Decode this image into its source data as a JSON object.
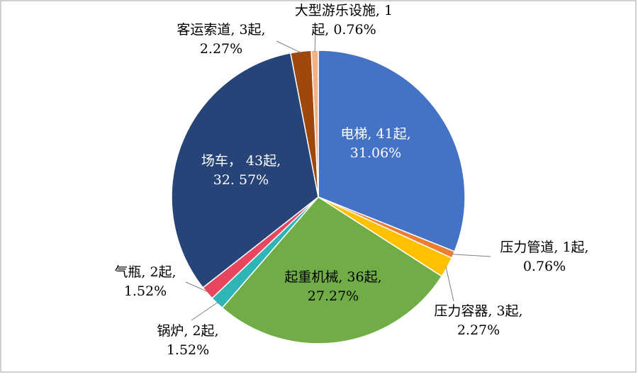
{
  "chart_data": {
    "type": "pie",
    "categories": [
      "电梯",
      "压力管道",
      "压力容器",
      "起重机械",
      "锅炉",
      "气瓶",
      "场车",
      "客运索道",
      "大型游乐设施"
    ],
    "values": [
      31.06,
      0.76,
      2.27,
      27.27,
      1.52,
      1.52,
      32.57,
      2.27,
      0.76
    ],
    "value_labels": [
      [
        "电梯, 41起,",
        "31.06%"
      ],
      [
        "压力管道, 1起,",
        "0.76%"
      ],
      [
        "压力容器, 3起,",
        "2.27%"
      ],
      [
        "起重机械, 36起,",
        "27.27%"
      ],
      [
        "锅炉, 2起,",
        "1.52%"
      ],
      [
        "气瓶, 2起,",
        "1.52%"
      ],
      [
        "场车， 43起,",
        "32. 57%"
      ],
      [
        "客运索道, 3起,",
        "2.27%"
      ],
      [
        "大型游乐设施, 1",
        "起, 0.76%"
      ]
    ],
    "colors": [
      "#4472c4",
      "#ed7d31",
      "#ffc000",
      "#70ad47",
      "#2fb5b5",
      "#e8455e",
      "#264478",
      "#9e480e",
      "#f4b183"
    ]
  }
}
